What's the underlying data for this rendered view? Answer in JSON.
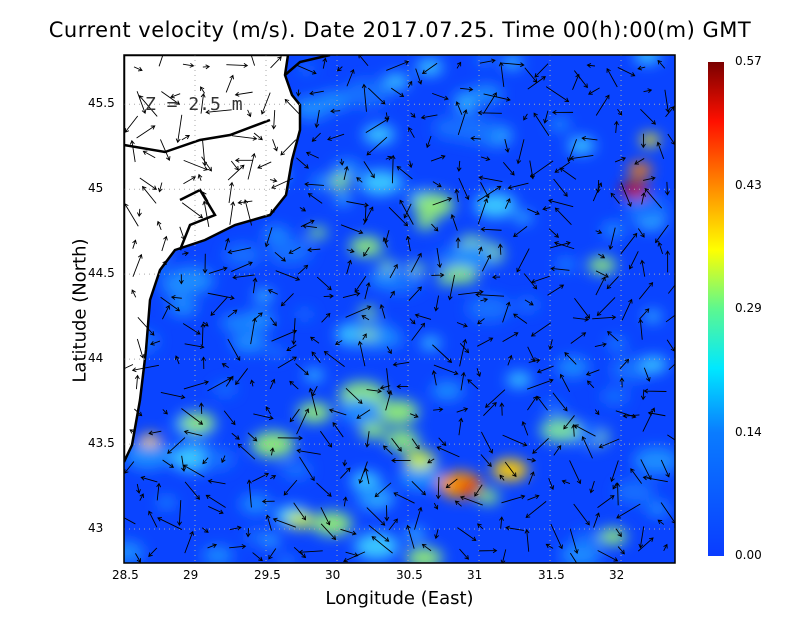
{
  "title": "Current velocity (m/s). Date 2017.07.25. Time 00(h):00(m) GMT",
  "depth_label": "Z = 2.5 m",
  "x_axis": {
    "label": "Longitude (East)",
    "range": [
      28.5,
      32.38
    ],
    "ticks": [
      "28.5",
      "29",
      "29.5",
      "30",
      "30.5",
      "31",
      "31.5",
      "32"
    ]
  },
  "y_axis": {
    "label": "Latitude (North)",
    "range": [
      42.8,
      45.79
    ],
    "ticks": [
      "43",
      "43.5",
      "44",
      "44.5",
      "45",
      "45.5"
    ]
  },
  "colorbar": {
    "ticks": [
      "0.00",
      "0.14",
      "0.29",
      "0.43",
      "0.57"
    ],
    "range": [
      0,
      0.57
    ],
    "colormap": "jet"
  },
  "grid": "dotted",
  "colors": {
    "land": "#ffffff",
    "coast": "#000000",
    "low": "#0a3cff",
    "high": "#7a0000"
  }
}
